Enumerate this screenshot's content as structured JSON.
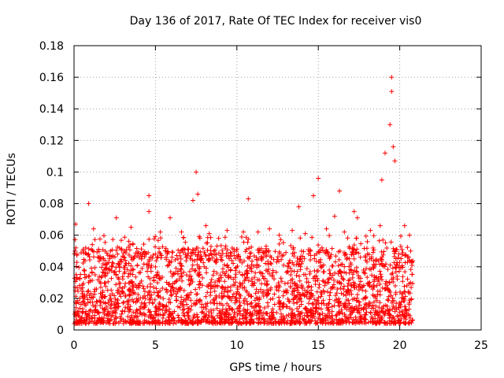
{
  "chart_data": {
    "type": "scatter",
    "title": "Day 136 of 2017, Rate Of TEC Index for receiver vis0",
    "xlabel": "GPS time / hours",
    "ylabel": "ROTI / TECUs",
    "xlim": [
      0,
      25
    ],
    "ylim": [
      0,
      0.18
    ],
    "x_ticks": [
      "0",
      "5",
      "10",
      "15",
      "20",
      "25"
    ],
    "y_ticks": [
      "0",
      "0.02",
      "0.04",
      "0.06",
      "0.08",
      "0.1",
      "0.12",
      "0.14",
      "0.16",
      "0.18"
    ],
    "grid": true,
    "marker": "+",
    "color": "#ff0000",
    "series": [
      {
        "x": [
          0.1,
          0.9,
          1.2,
          2.6,
          3.5,
          4.6,
          4.6,
          5.3,
          5.9,
          6.6,
          7.3,
          7.5,
          7.6,
          8.1,
          8.3,
          9.4,
          10.4,
          10.7,
          11.3,
          12.0,
          12.6,
          13.4,
          13.8,
          14.2,
          14.7,
          15.0,
          15.5,
          16.0,
          16.3,
          16.6,
          17.2,
          17.4,
          18.2,
          18.8,
          18.9,
          19.1,
          19.4,
          19.5,
          19.5,
          19.6,
          19.7,
          20.3,
          20.6
        ],
        "y": [
          0.067,
          0.08,
          0.064,
          0.071,
          0.065,
          0.085,
          0.075,
          0.062,
          0.071,
          0.062,
          0.082,
          0.1,
          0.086,
          0.066,
          0.061,
          0.063,
          0.062,
          0.083,
          0.062,
          0.064,
          0.06,
          0.063,
          0.078,
          0.061,
          0.085,
          0.096,
          0.064,
          0.072,
          0.088,
          0.062,
          0.075,
          0.071,
          0.063,
          0.066,
          0.095,
          0.112,
          0.13,
          0.16,
          0.151,
          0.116,
          0.107,
          0.066,
          0.06
        ]
      }
    ]
  }
}
